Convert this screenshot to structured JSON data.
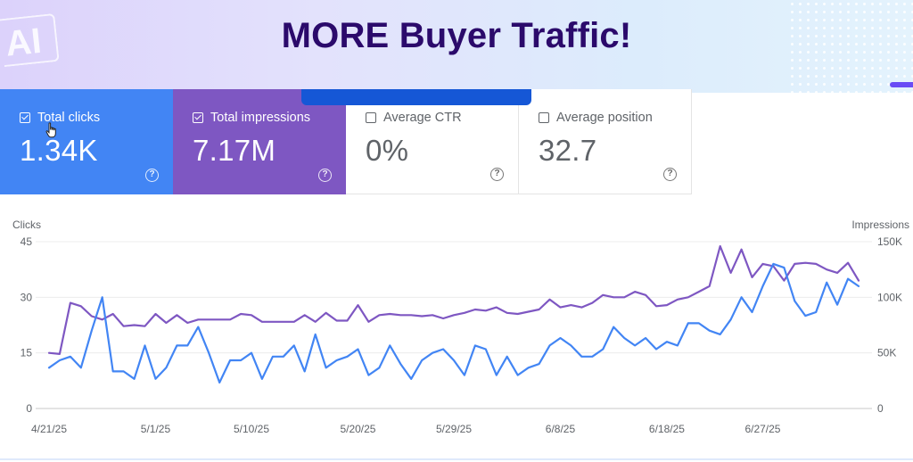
{
  "banner": {
    "title": "MORE Buyer Traffic!",
    "ai_badge": "AI"
  },
  "metrics": [
    {
      "label": "Total clicks",
      "value": "1.34K",
      "checked": true,
      "color": "#4285f4"
    },
    {
      "label": "Total impressions",
      "value": "7.17M",
      "checked": true,
      "color": "#7e57c2"
    },
    {
      "label": "Average CTR",
      "value": "0%",
      "checked": false
    },
    {
      "label": "Average position",
      "value": "32.7",
      "checked": false
    }
  ],
  "help_icon": "?",
  "chart_data": {
    "type": "line",
    "left_axis_title": "Clicks",
    "right_axis_title": "Impressions",
    "left_ticks": [
      "45",
      "30",
      "15",
      "0"
    ],
    "right_ticks": [
      "150K",
      "100K",
      "50K",
      "0"
    ],
    "left_range": [
      0,
      45
    ],
    "right_range": [
      0,
      150000
    ],
    "grid": true,
    "x_labels": [
      {
        "text": "4/21/25",
        "index": 0
      },
      {
        "text": "5/1/25",
        "index": 10
      },
      {
        "text": "5/10/25",
        "index": 19
      },
      {
        "text": "5/20/25",
        "index": 29
      },
      {
        "text": "5/29/25",
        "index": 38
      },
      {
        "text": "6/8/25",
        "index": 48
      },
      {
        "text": "6/18/25",
        "index": 58
      },
      {
        "text": "6/27/25",
        "index": 67
      }
    ],
    "series": [
      {
        "name": "Total clicks",
        "axis": "left",
        "color": "#4285f4",
        "values": [
          11,
          13,
          14,
          11,
          21,
          30,
          10,
          10,
          8,
          17,
          8,
          11,
          17,
          17,
          22,
          15,
          7,
          13,
          13,
          15,
          8,
          14,
          14,
          17,
          10,
          20,
          11,
          13,
          14,
          16,
          9,
          11,
          17,
          12,
          8,
          13,
          15,
          16,
          13,
          9,
          17,
          16,
          9,
          14,
          9,
          11,
          12,
          17,
          19,
          17,
          14,
          14,
          16,
          22,
          19,
          17,
          19,
          16,
          18,
          17,
          23,
          23,
          21,
          20,
          24,
          30,
          26,
          33,
          39,
          38,
          29,
          25,
          26,
          34,
          28,
          35,
          33
        ]
      },
      {
        "name": "Total impressions",
        "axis": "right",
        "color": "#7e57c2",
        "values": [
          50000,
          49000,
          95000,
          92000,
          83000,
          80000,
          85000,
          74000,
          75000,
          74000,
          85000,
          77000,
          84000,
          77000,
          80000,
          80000,
          80000,
          80000,
          85000,
          84000,
          78000,
          78000,
          78000,
          78000,
          84000,
          78000,
          86000,
          79000,
          79000,
          93000,
          78000,
          84000,
          85000,
          84000,
          84000,
          83000,
          84000,
          81000,
          84000,
          86000,
          89000,
          88000,
          91000,
          86000,
          85000,
          87000,
          89000,
          98000,
          91000,
          93000,
          91000,
          95000,
          102000,
          100000,
          100000,
          105000,
          102000,
          92000,
          93000,
          98000,
          100000,
          105000,
          110000,
          146000,
          122000,
          143000,
          118000,
          130000,
          128000,
          115000,
          130000,
          131000,
          130000,
          125000,
          122000,
          131000,
          115000
        ]
      }
    ]
  }
}
